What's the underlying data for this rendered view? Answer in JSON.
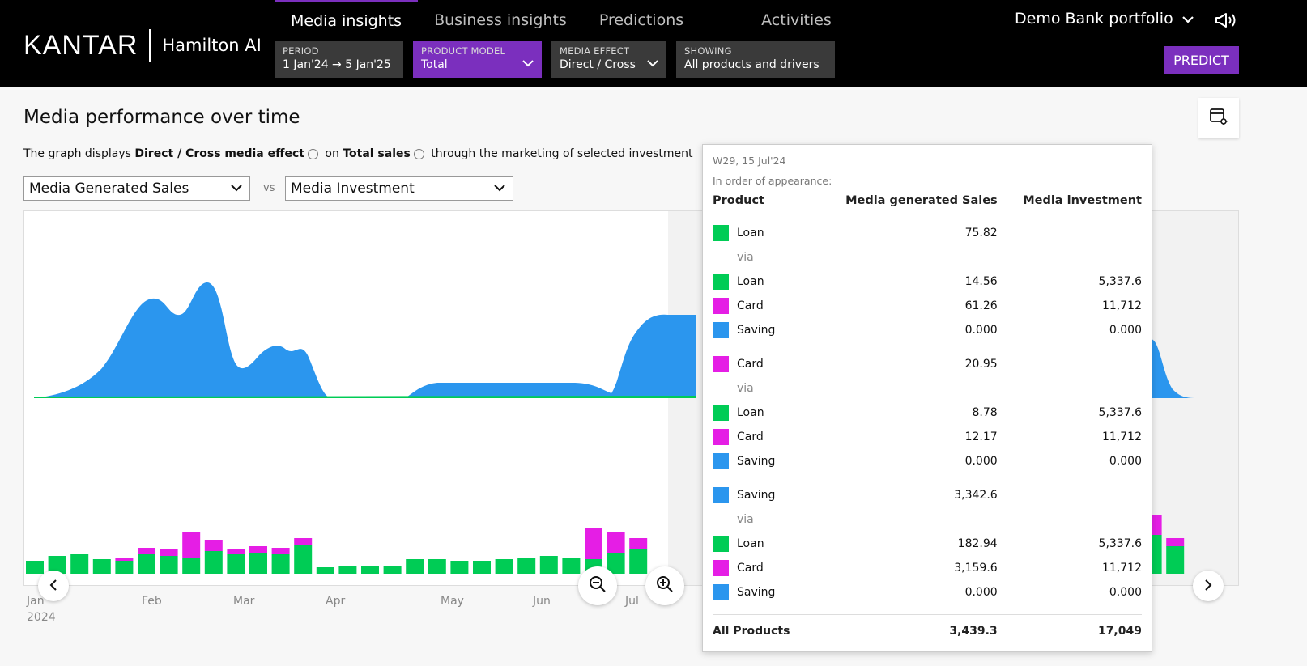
{
  "brand": {
    "logo": "KANTAR",
    "product": "Hamilton AI"
  },
  "tabs": [
    {
      "label": "Media insights",
      "active": true
    },
    {
      "label": "Business insights",
      "active": false
    },
    {
      "label": "Predictions",
      "active": false
    },
    {
      "label": "Activities",
      "active": false
    }
  ],
  "filters": {
    "period": {
      "label": "PERIOD",
      "value": "1 Jan'24 → 5 Jan'25"
    },
    "product_model": {
      "label": "PRODUCT MODEL",
      "value": "Total"
    },
    "media_effect": {
      "label": "MEDIA EFFECT",
      "value": "Direct / Cross"
    },
    "showing": {
      "label": "SHOWING",
      "value": "All products and drivers"
    }
  },
  "portfolio": "Demo Bank portfolio",
  "predict_label": "PREDICT",
  "page": {
    "title": "Media performance over time",
    "desc_prefix": "The graph displays",
    "desc_effect": "Direct / Cross media effect",
    "desc_on": "on",
    "desc_sales": "Total sales",
    "desc_suffix": "through the marketing of selected investment",
    "metric_left": "Media Generated Sales",
    "vs": "vs",
    "metric_right": "Media Investment"
  },
  "x_axis": {
    "labels": [
      "Jan",
      "Feb",
      "Mar",
      "Apr",
      "May",
      "Jun",
      "Jul"
    ],
    "year": "2024"
  },
  "colors": {
    "loan": "#00cc55",
    "card": "#e51ee5",
    "saving": "#2b96ee",
    "accent": "#7b2fbe"
  },
  "chart_data": {
    "type": "area",
    "series": [
      {
        "name": "Loan",
        "color": "#00cc55"
      },
      {
        "name": "Card",
        "color": "#e51ee5"
      },
      {
        "name": "Saving",
        "color": "#2b96ee"
      }
    ]
  },
  "tooltip": {
    "date": "W29, 15 Jul'24",
    "order_note": "In order of appearance:",
    "headers": {
      "product": "Product",
      "sales": "Media generated Sales",
      "investment": "Media investment"
    },
    "via_label": "via",
    "groups": [
      {
        "product": "Loan",
        "color": "#00cc55",
        "sales": "75.82",
        "via": [
          {
            "product": "Loan",
            "color": "#00cc55",
            "sales": "14.56",
            "investment": "5,337.6"
          },
          {
            "product": "Card",
            "color": "#e51ee5",
            "sales": "61.26",
            "investment": "11,712"
          },
          {
            "product": "Saving",
            "color": "#2b96ee",
            "sales": "0.000",
            "investment": "0.000"
          }
        ]
      },
      {
        "product": "Card",
        "color": "#e51ee5",
        "sales": "20.95",
        "via": [
          {
            "product": "Loan",
            "color": "#00cc55",
            "sales": "8.78",
            "investment": "5,337.6"
          },
          {
            "product": "Card",
            "color": "#e51ee5",
            "sales": "12.17",
            "investment": "11,712"
          },
          {
            "product": "Saving",
            "color": "#2b96ee",
            "sales": "0.000",
            "investment": "0.000"
          }
        ]
      },
      {
        "product": "Saving",
        "color": "#2b96ee",
        "sales": "3,342.6",
        "via": [
          {
            "product": "Loan",
            "color": "#00cc55",
            "sales": "182.94",
            "investment": "5,337.6"
          },
          {
            "product": "Card",
            "color": "#e51ee5",
            "sales": "3,159.6",
            "investment": "11,712"
          },
          {
            "product": "Saving",
            "color": "#2b96ee",
            "sales": "0.000",
            "investment": "0.000"
          }
        ]
      }
    ],
    "total": {
      "label": "All Products",
      "sales": "3,439.3",
      "investment": "17,049"
    }
  }
}
